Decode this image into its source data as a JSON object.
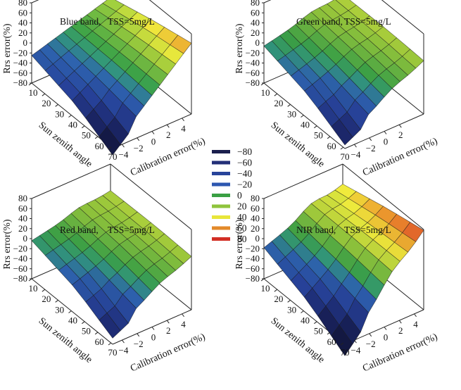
{
  "figure": {
    "colorbar": {
      "levels": [
        -80,
        -60,
        -40,
        -20,
        0,
        20,
        40,
        60,
        80
      ],
      "labels": [
        "−80",
        "−60",
        "−40",
        "−20",
        "0",
        "20",
        "40",
        "60",
        "80"
      ],
      "colors": [
        "#1b1f4d",
        "#232f78",
        "#28449a",
        "#2d57b0",
        "#3aa043",
        "#8fc43c",
        "#e8e63a",
        "#e38a2a",
        "#d22f25"
      ]
    },
    "color_ramp": [
      [
        -80,
        "#151b4a"
      ],
      [
        -60,
        "#1f2c78"
      ],
      [
        -40,
        "#2a47a5"
      ],
      [
        -20,
        "#2f66b4"
      ],
      [
        -8,
        "#339a7e"
      ],
      [
        0,
        "#3da448"
      ],
      [
        20,
        "#8fc43c"
      ],
      [
        40,
        "#e9e63b"
      ],
      [
        60,
        "#e58b2b"
      ],
      [
        80,
        "#d22f25"
      ]
    ]
  },
  "chart_data": [
    {
      "type": "surface",
      "title": "Blue band,",
      "subtitle": "TSS=5mg/L",
      "zlabel": "Rrs error(%)",
      "xlabel": "Sun zenith angle",
      "ylabel": "Calibration error(%)",
      "zticks": [
        "80",
        "60",
        "40",
        "20",
        "0",
        "−20",
        "−40",
        "−60",
        "−80"
      ],
      "xticks": [
        "10",
        "20",
        "30",
        "40",
        "50",
        "60",
        "70"
      ],
      "yticks": [
        "−4",
        "−2",
        "0",
        "2",
        "4"
      ],
      "zlim": [
        -80,
        80
      ],
      "sun_zenith": [
        10,
        20,
        30,
        40,
        50,
        60,
        70
      ],
      "calibration": [
        -5,
        -4,
        -3,
        -2,
        -1,
        0,
        1,
        2,
        3,
        4,
        5
      ],
      "corners": {
        "front_left": -25,
        "front_right": -75,
        "back_left": 22,
        "back_right": 65
      },
      "ridge": 0
    },
    {
      "type": "surface",
      "title": "Green band,",
      "subtitle": "TSS=5mg/L",
      "zlabel": "Rrs error(%)",
      "xlabel": "Sun zenith angle",
      "ylabel": "Calibration error(%)",
      "zticks": [
        "80",
        "60",
        "40",
        "20",
        "0",
        "−20",
        "−40",
        "−60",
        "−80"
      ],
      "xticks": [
        "10",
        "20",
        "30",
        "40",
        "50",
        "60",
        "70"
      ],
      "yticks": [
        "−4",
        "−2",
        "0",
        "2"
      ],
      "zlim": [
        -80,
        80
      ],
      "sun_zenith": [
        10,
        20,
        30,
        40,
        50,
        60,
        70
      ],
      "calibration": [
        -5,
        -4,
        -3,
        -2,
        -1,
        0,
        1,
        2,
        3,
        4,
        5
      ],
      "corners": {
        "front_left": -6,
        "front_right": -55,
        "back_left": 28,
        "back_right": 30
      },
      "ridge": 6
    },
    {
      "type": "surface",
      "title": "Red band,",
      "subtitle": "TSS=5mg/L",
      "zlabel": "Rrs error(%)",
      "xlabel": "Sun zenith angle",
      "ylabel": "Calibration error(%)",
      "zticks": [
        "80",
        "60",
        "40",
        "20",
        "0",
        "−20",
        "−40",
        "−60",
        "−80"
      ],
      "xticks": [
        "10",
        "20",
        "30",
        "40",
        "50",
        "60",
        "70"
      ],
      "yticks": [
        "−4",
        "−2",
        "0",
        "2",
        "4"
      ],
      "zlim": [
        -80,
        80
      ],
      "sun_zenith": [
        10,
        20,
        30,
        40,
        50,
        60,
        70
      ],
      "calibration": [
        -5,
        -4,
        -3,
        -2,
        -1,
        0,
        1,
        2,
        3,
        4,
        5
      ],
      "corners": {
        "front_left": -4,
        "front_right": -50,
        "back_left": 27,
        "back_right": 30
      },
      "ridge": 6
    },
    {
      "type": "surface",
      "title": "NIR band,",
      "subtitle": "TSS=5mg/L",
      "zlabel": "Rrs error(%)",
      "xlabel": "Sun zenith angle",
      "ylabel": "Calibration error(%)",
      "zticks": [
        "80",
        "60",
        "40",
        "20",
        "0",
        "−20",
        "−40",
        "−60",
        "−80"
      ],
      "xticks": [
        "10",
        "20",
        "30",
        "40",
        "50",
        "60",
        "70"
      ],
      "yticks": [
        "−4",
        "−2",
        "0",
        "2",
        "4"
      ],
      "zlim": [
        -80,
        80
      ],
      "sun_zenith": [
        10,
        20,
        30,
        40,
        50,
        60,
        70
      ],
      "calibration": [
        -5,
        -4,
        -3,
        -2,
        -1,
        0,
        1,
        2,
        3,
        4,
        5
      ],
      "corners": {
        "front_left": -18,
        "front_right": -85,
        "back_left": 40,
        "back_right": 82
      },
      "ridge": 12
    }
  ]
}
